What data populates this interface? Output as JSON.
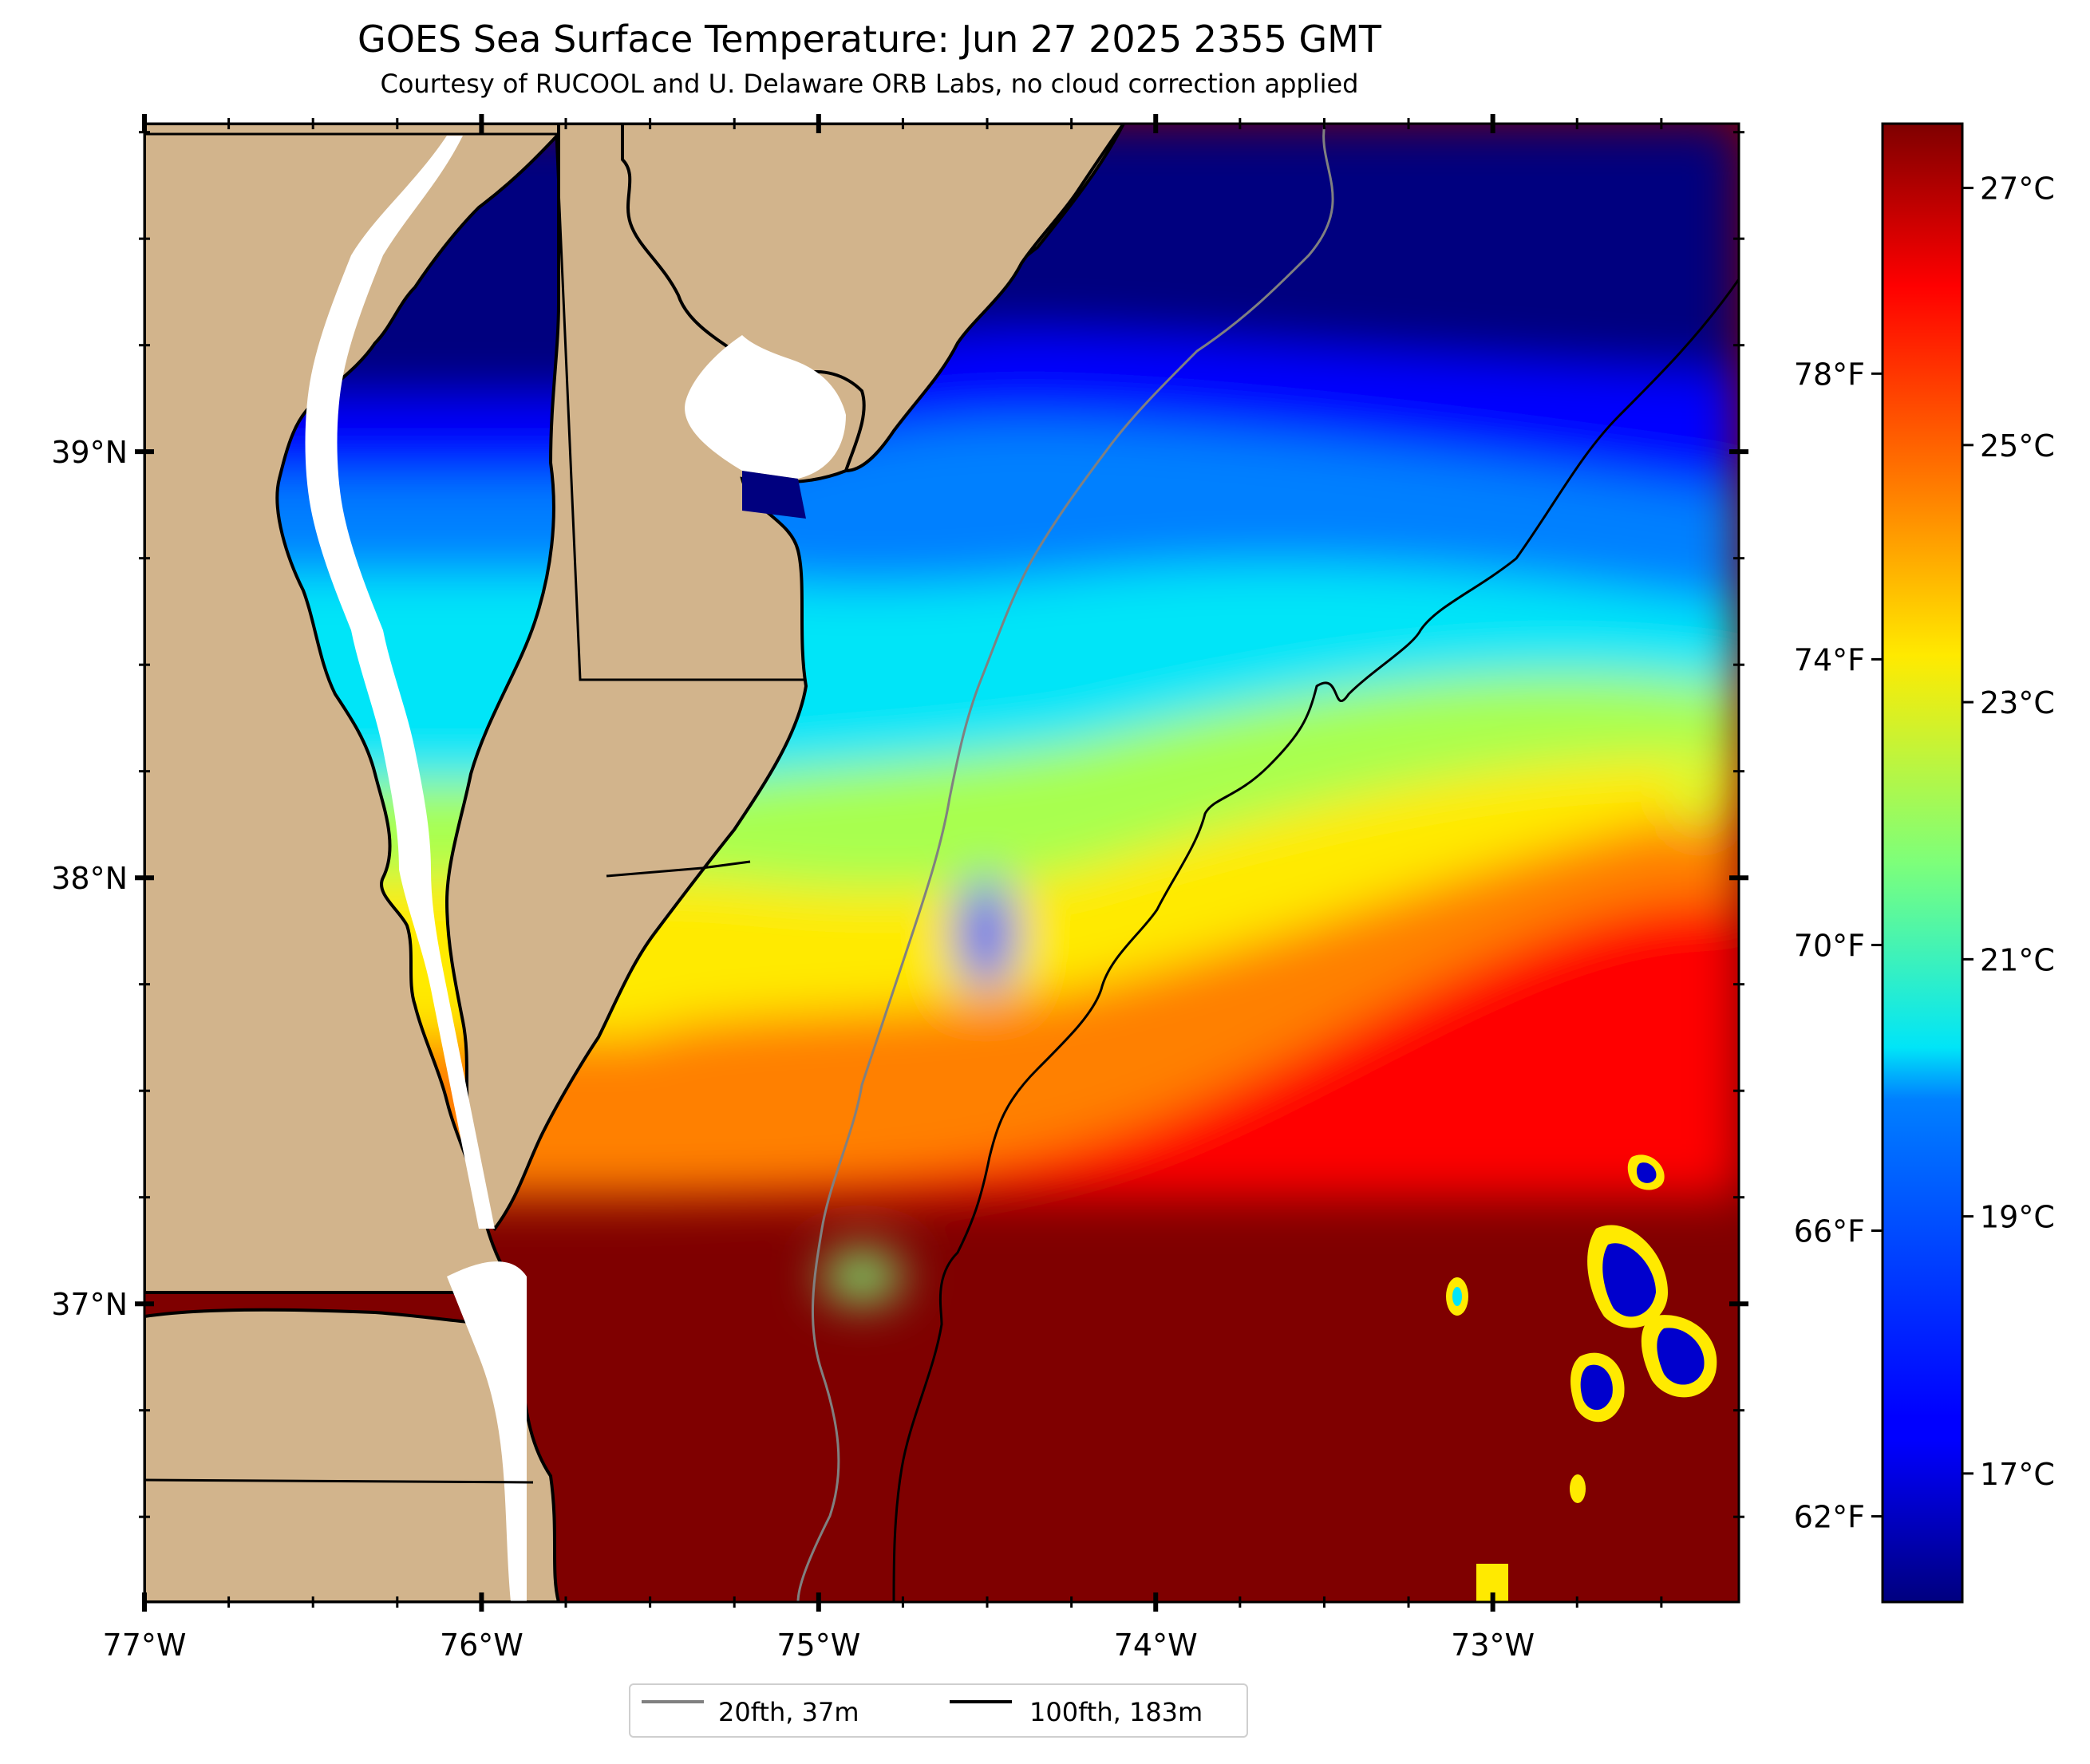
{
  "title": "GOES Sea Surface Temperature: Jun 27 2025 2355 GMT",
  "subtitle": "Courtesy of RUCOOL and U. Delaware ORB Labs, no cloud correction applied",
  "axes": {
    "lon_range": [
      -77.0,
      -72.27
    ],
    "lat_range": [
      36.3,
      39.77
    ],
    "x_ticks": [
      {
        "lon": -77,
        "label": "77°W"
      },
      {
        "lon": -76,
        "label": "76°W"
      },
      {
        "lon": -75,
        "label": "75°W"
      },
      {
        "lon": -74,
        "label": "74°W"
      },
      {
        "lon": -73,
        "label": "73°W"
      }
    ],
    "y_ticks": [
      {
        "lat": 39,
        "label": "39°N"
      },
      {
        "lat": 38,
        "label": "38°N"
      },
      {
        "lat": 37,
        "label": "37°N"
      }
    ]
  },
  "colorbar": {
    "range_c": [
      16.0,
      27.5
    ],
    "colormap": "jet",
    "celsius_ticks": [
      {
        "value": 27,
        "label": "27°C"
      },
      {
        "value": 25,
        "label": "25°C"
      },
      {
        "value": 23,
        "label": "23°C"
      },
      {
        "value": 21,
        "label": "21°C"
      },
      {
        "value": 19,
        "label": "19°C"
      },
      {
        "value": 17,
        "label": "17°C"
      }
    ],
    "fahrenheit_ticks": [
      {
        "value": 78,
        "label": "78°F"
      },
      {
        "value": 74,
        "label": "74°F"
      },
      {
        "value": 70,
        "label": "70°F"
      },
      {
        "value": 66,
        "label": "66°F"
      },
      {
        "value": 62,
        "label": "62°F"
      }
    ]
  },
  "legend": {
    "items": [
      {
        "label": "20fth, 37m",
        "color": "#808080"
      },
      {
        "label": "100fth, 183m",
        "color": "#000000"
      }
    ]
  },
  "colors": {
    "land": "#d2b48c",
    "no_data": "#ffffff",
    "isobath_20fth": "#808080",
    "isobath_100fth": "#000000",
    "coast": "#000000"
  }
}
